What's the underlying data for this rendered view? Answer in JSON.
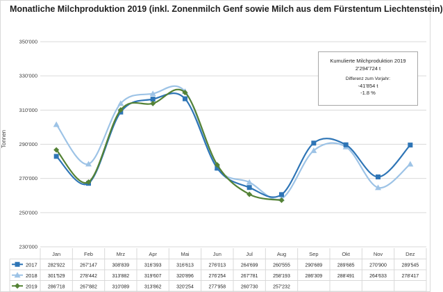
{
  "title": "Monatliche Milchproduktion 2019 (inkl. Zonenmilch Genf sowie Milch aus dem Fürstentum Liechtenstein)",
  "infobox": {
    "heading": "Kumulierte Milchproduktion 2019",
    "total": "2'294'724 t",
    "diff_label": "Differenz zum Vorjahr:",
    "diff_abs": "-41'854 t",
    "diff_pct": "-1.8 %"
  },
  "colors": {
    "s2017": "#2e75b6",
    "s2018": "#9dc3e6",
    "s2019": "#548235",
    "grid": "#d9d9d9",
    "axis_text": "#404040"
  },
  "chart_data": {
    "type": "line",
    "title": "Monatliche Milchproduktion 2019 (inkl. Zonenmilch Genf sowie Milch aus dem Fürstentum Liechtenstein)",
    "ylabel": "Tonnen",
    "xlabel": "",
    "ylim": [
      230000,
      350000
    ],
    "ytick_values": [
      230000,
      250000,
      270000,
      290000,
      310000,
      330000,
      350000
    ],
    "ytick_labels": [
      "230'000",
      "250'000",
      "270'000",
      "290'000",
      "310'000",
      "330'000",
      "350'000"
    ],
    "grid": true,
    "legend": "table-below",
    "categories": [
      "Jan",
      "Feb",
      "Mrz",
      "Apr",
      "Mai",
      "Jun",
      "Jul",
      "Aug",
      "Sep",
      "Okt",
      "Nov",
      "Dez"
    ],
    "series": [
      {
        "name": "2017",
        "marker": "square",
        "values": [
          282922,
          267147,
          308839,
          316393,
          316613,
          276013,
          264699,
          260555,
          290689,
          289685,
          270900,
          289545
        ],
        "labels": [
          "282'922",
          "267'147",
          "308'839",
          "316'393",
          "316'613",
          "276'013",
          "264'699",
          "260'555",
          "290'689",
          "289'685",
          "270'900",
          "289'545"
        ]
      },
      {
        "name": "2018",
        "marker": "triangle",
        "values": [
          301529,
          278442,
          313882,
          319607,
          320896,
          276254,
          267781,
          258193,
          286309,
          288491,
          264633,
          278417
        ],
        "labels": [
          "301'529",
          "278'442",
          "313'882",
          "319'607",
          "320'896",
          "276'254",
          "267'781",
          "258'193",
          "286'309",
          "288'491",
          "264'633",
          "278'417"
        ]
      },
      {
        "name": "2019",
        "marker": "diamond",
        "values": [
          286718,
          267882,
          310089,
          313862,
          320254,
          277958,
          260730,
          257232,
          null,
          null,
          null,
          null
        ],
        "labels": [
          "286'718",
          "267'882",
          "310'089",
          "313'862",
          "320'254",
          "277'958",
          "260'730",
          "257'232",
          "",
          "",
          "",
          ""
        ]
      }
    ]
  }
}
